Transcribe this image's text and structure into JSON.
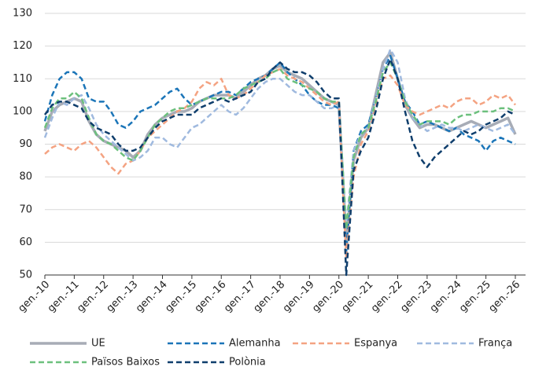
{
  "chart_data": {
    "type": "line",
    "categories": [
      "gen.-10",
      null,
      null,
      null,
      "gen.-11",
      null,
      null,
      null,
      "gen.-12",
      null,
      null,
      null,
      "gen.-13",
      null,
      null,
      null,
      "gen.-14",
      null,
      null,
      null,
      "gen.-15",
      null,
      null,
      null,
      "gen.-16",
      null,
      null,
      null,
      "gen.-17",
      null,
      null,
      null,
      "gen.-18",
      null,
      null,
      null,
      "gen.-19",
      null,
      null,
      null,
      "gen.-20",
      null,
      null,
      null,
      "gen.-21",
      null,
      null,
      null,
      "gen.-22",
      null,
      null,
      null,
      "gen.-23",
      null,
      null,
      null,
      "gen.-24",
      null,
      null,
      null,
      "gen.-25",
      null,
      null,
      null,
      "gen.-26"
    ],
    "ylim": [
      50,
      130
    ],
    "yticks": [
      50,
      60,
      70,
      80,
      90,
      100,
      110,
      120,
      130
    ],
    "grid": true,
    "series": [
      {
        "name": "UE",
        "color": "#a7acb6",
        "dashed": false,
        "values": [
          94,
          100,
          102,
          103,
          104,
          103,
          97,
          93,
          91,
          90,
          89,
          88,
          86,
          88,
          93,
          96,
          98,
          99,
          100,
          100,
          101,
          103,
          104,
          105,
          105,
          105,
          104,
          106,
          108,
          110,
          111,
          113,
          114,
          112,
          111,
          110,
          108,
          106,
          104,
          103,
          102,
          60,
          85,
          92,
          95,
          105,
          115,
          118,
          110,
          102,
          98,
          95,
          96,
          96,
          95,
          94,
          95,
          96,
          97,
          96,
          95,
          96,
          97,
          98,
          93
        ]
      },
      {
        "name": "Alemanha",
        "color": "#1b75b8",
        "dashed": true,
        "values": [
          97,
          105,
          110,
          112,
          112,
          110,
          104,
          103,
          103,
          100,
          96,
          95,
          97,
          100,
          101,
          102,
          104,
          106,
          107,
          104,
          102,
          103,
          104,
          105,
          106,
          106,
          105,
          107,
          109,
          110,
          111,
          113,
          115,
          112,
          110,
          108,
          105,
          103,
          102,
          102,
          101,
          57,
          88,
          94,
          96,
          104,
          113,
          117,
          110,
          103,
          100,
          96,
          97,
          96,
          95,
          94,
          95,
          93,
          92,
          91,
          88,
          91,
          92,
          91,
          90
        ]
      },
      {
        "name": "Espanya",
        "color": "#f4a382",
        "dashed": true,
        "values": [
          87,
          89,
          90,
          89,
          88,
          90,
          91,
          89,
          86,
          83,
          81,
          84,
          85,
          88,
          92,
          94,
          96,
          98,
          100,
          101,
          103,
          107,
          109,
          108,
          110,
          105,
          104,
          105,
          107,
          109,
          111,
          112,
          113,
          111,
          110,
          109,
          107,
          105,
          103,
          102,
          103,
          55,
          80,
          90,
          94,
          102,
          110,
          111,
          108,
          102,
          100,
          99,
          100,
          101,
          102,
          101,
          103,
          104,
          104,
          102,
          103,
          105,
          104,
          105,
          102
        ]
      },
      {
        "name": "França",
        "color": "#a0badf",
        "dashed": true,
        "values": [
          92,
          98,
          103,
          102,
          104,
          105,
          101,
          96,
          93,
          91,
          89,
          87,
          85,
          86,
          88,
          92,
          92,
          90,
          89,
          92,
          95,
          96,
          98,
          100,
          102,
          100,
          99,
          101,
          104,
          107,
          109,
          110,
          110,
          108,
          106,
          105,
          105,
          103,
          101,
          101,
          102,
          65,
          88,
          93,
          95,
          104,
          113,
          119,
          115,
          104,
          98,
          96,
          94,
          95,
          96,
          95,
          95,
          94,
          95,
          96,
          95,
          94,
          95,
          96,
          93
        ]
      },
      {
        "name": "Països Baixos",
        "color": "#6cc07d",
        "dashed": true,
        "values": [
          95,
          101,
          104,
          104,
          106,
          104,
          98,
          93,
          91,
          90,
          88,
          86,
          85,
          88,
          92,
          96,
          98,
          100,
          101,
          101,
          102,
          103,
          104,
          104,
          104,
          104,
          105,
          107,
          108,
          109,
          110,
          112,
          113,
          110,
          109,
          108,
          107,
          106,
          104,
          103,
          103,
          64,
          86,
          93,
          95,
          103,
          112,
          115,
          110,
          103,
          99,
          96,
          97,
          97,
          97,
          96,
          98,
          99,
          99,
          100,
          100,
          100,
          101,
          101,
          100
        ]
      },
      {
        "name": "Polònia",
        "color": "#0f3e6c",
        "dashed": true,
        "values": [
          99,
          102,
          103,
          103,
          102,
          101,
          97,
          95,
          94,
          93,
          90,
          88,
          88,
          89,
          92,
          95,
          97,
          98,
          99,
          99,
          99,
          101,
          102,
          103,
          104,
          103,
          104,
          105,
          106,
          109,
          110,
          113,
          115,
          113,
          112,
          112,
          111,
          109,
          106,
          104,
          104,
          50,
          82,
          88,
          92,
          100,
          110,
          116,
          110,
          100,
          91,
          86,
          83,
          86,
          88,
          90,
          92,
          94,
          93,
          94,
          96,
          97,
          98,
          100,
          99
        ]
      }
    ]
  }
}
